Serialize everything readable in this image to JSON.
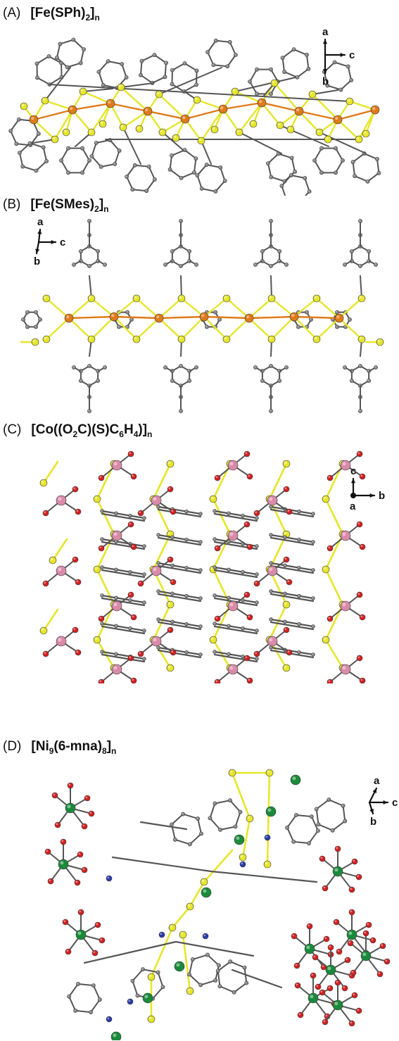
{
  "panels": [
    {
      "tag": "(A)",
      "formula": {
        "pre": "[Fe(SPh)",
        "sub1": "2",
        "mid": "]",
        "sub2": "n"
      },
      "axes": {
        "up": "a",
        "right": "c",
        "down": "b"
      }
    },
    {
      "tag": "(B)",
      "formula": {
        "pre": "[Fe(SMes)",
        "sub1": "2",
        "mid": "]",
        "sub2": "n"
      },
      "axes": {
        "up": "a",
        "right": "c",
        "down": "b"
      }
    },
    {
      "tag": "(C)",
      "formula": {
        "pre": "[Co((O",
        "sub1": "2",
        "mid": "C)(S)C",
        "sub2": "6",
        "mid2": "H",
        "sub3": "4",
        "end": ")]",
        "sub4": "n"
      },
      "axes": {
        "up": "c",
        "right": "b",
        "dot": "a"
      }
    },
    {
      "tag": "(D)",
      "formula": {
        "pre": "[Ni",
        "sub1": "9",
        "mid": "(6-mna)",
        "sub2": "8",
        "end": "]",
        "sub3": "n"
      },
      "axes": {
        "up": "a",
        "right": "c",
        "down": "b"
      }
    }
  ],
  "colors": {
    "iron": "#e07a18",
    "sulfur": "#e6e62a",
    "carbon": "#777777",
    "oxygen": "#d42020",
    "cobalt": "#d98aa8",
    "nickel": "#1a8a3a",
    "nitrogen": "#2a3aa8",
    "bond": "#555555"
  }
}
